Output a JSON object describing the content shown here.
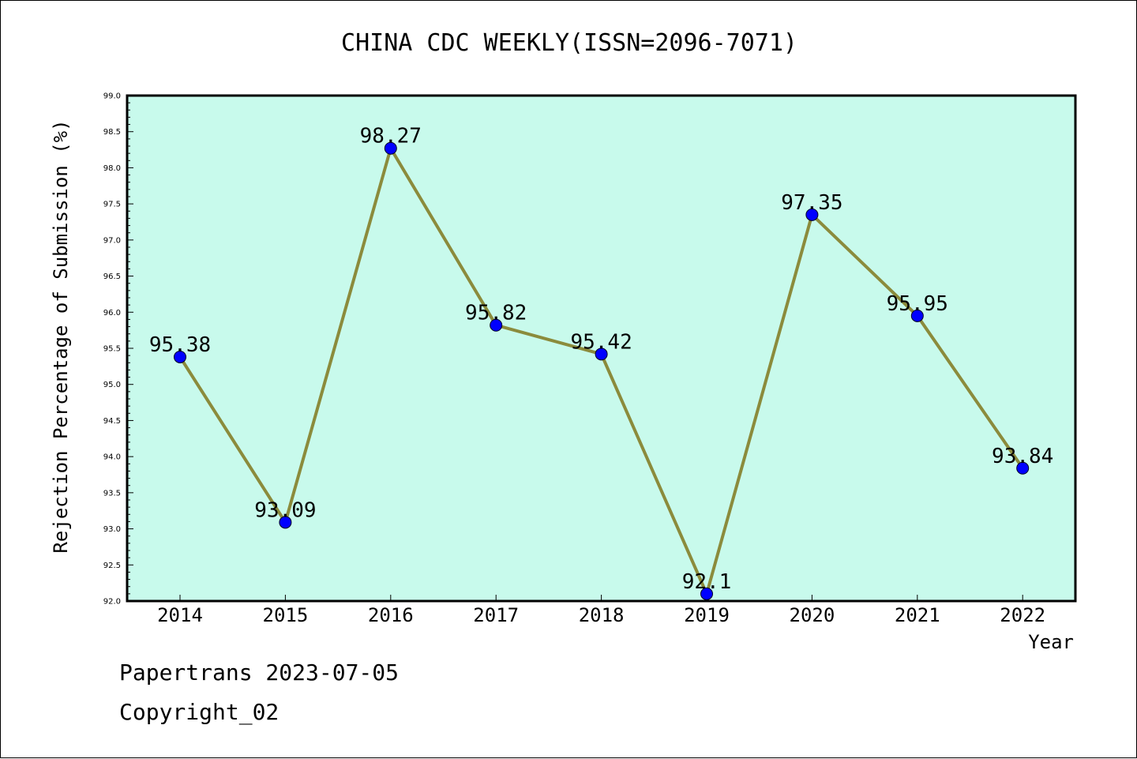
{
  "chart_data": {
    "type": "line",
    "title": "CHINA CDC WEEKLY(ISSN=2096-7071)",
    "xlabel": "Year",
    "ylabel": "Rejection Percentage of Submission (%)",
    "categories": [
      "2014",
      "2015",
      "2016",
      "2017",
      "2018",
      "2019",
      "2020",
      "2021",
      "2022"
    ],
    "values": [
      95.38,
      93.09,
      98.27,
      95.82,
      95.42,
      92.1,
      97.35,
      95.95,
      93.84
    ],
    "data_labels": [
      "95.38",
      "93.09",
      "98.27",
      "95.82",
      "95.42",
      "92.1",
      "97.35",
      "95.95",
      "93.84"
    ],
    "ylim": [
      92.0,
      99.0
    ],
    "yticks": [
      "92.0",
      "92.5",
      "93.0",
      "93.5",
      "94.0",
      "94.5",
      "95.0",
      "95.5",
      "96.0",
      "96.5",
      "97.0",
      "97.5",
      "98.0",
      "98.5",
      "99.0"
    ],
    "grid": false,
    "colors": {
      "plot_background": "#c8faec",
      "line": "#8b8b3c",
      "marker": "#0000ff"
    }
  },
  "footer": {
    "line1": "Papertrans 2023-07-05",
    "line2": "Copyright_02"
  }
}
